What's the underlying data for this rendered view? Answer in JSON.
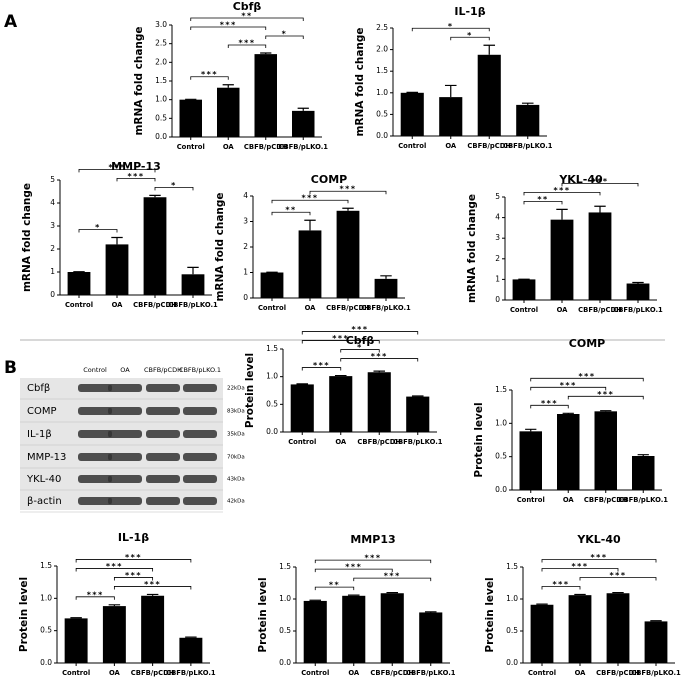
{
  "panels": [
    "A",
    "B"
  ],
  "blot": {
    "lanes": [
      "Control",
      "OA",
      "CBFB/pCDH",
      "CBFB/pLKO.1"
    ],
    "proteins": [
      "Cbfβ",
      "COMP",
      "IL-1β",
      "MMP-13",
      "YKL-40",
      "β-actin"
    ],
    "sizes": [
      "22kDa",
      "83kDa",
      "35kDa",
      "70kDa",
      "43kDa",
      "42kDa"
    ]
  },
  "chart_data": [
    {
      "type": "bar",
      "title": "Cbfβ",
      "ylabel": "mRNA fold change",
      "categories": [
        "Control",
        "OA",
        "CBFB/pCDH",
        "CBFB/pLKO.1"
      ],
      "values": [
        1.0,
        1.32,
        2.22,
        0.7
      ],
      "errors": [
        0.01,
        0.08,
        0.03,
        0.07
      ],
      "ylim": [
        0,
        3
      ],
      "yticks": [
        {
          "value": 0,
          "label": "0.0"
        },
        0.5,
        {
          "value": 1,
          "label": "1.0"
        },
        1.5,
        {
          "value": 2,
          "label": "2.0"
        },
        2.5,
        {
          "value": 3,
          "label": "3.0"
        }
      ],
      "color": "#000000",
      "annotations": [
        {
          "from": 0,
          "to": 1,
          "label": "***"
        },
        {
          "from": 1,
          "to": 2,
          "label": "***"
        },
        {
          "from": 2,
          "to": 3,
          "label": "*"
        },
        {
          "from": 0,
          "to": 2,
          "label": "***"
        },
        {
          "from": 0,
          "to": 3,
          "label": "**"
        }
      ]
    },
    {
      "type": "bar",
      "title": "IL-1β",
      "ylabel": "mRNA fold change",
      "categories": [
        "Control",
        "OA",
        "CBFB/pCDH",
        "CBFB/pLKO.1"
      ],
      "values": [
        1.0,
        0.9,
        1.88,
        0.72
      ],
      "errors": [
        0.01,
        0.27,
        0.22,
        0.04
      ],
      "ylim": [
        0,
        2.5
      ],
      "yticks": [
        {
          "value": 0,
          "label": "0.0"
        },
        0.5,
        {
          "value": 1,
          "label": "1.0"
        },
        1.5,
        {
          "value": 2,
          "label": "2.0"
        },
        2.5
      ],
      "color": "#000000",
      "annotations": [
        {
          "from": 1,
          "to": 2,
          "label": "*"
        },
        {
          "from": 0,
          "to": 2,
          "label": "*"
        }
      ]
    },
    {
      "type": "bar",
      "title": "MMP-13",
      "ylabel": "mRNA fold change",
      "categories": [
        "Control",
        "OA",
        "CBFB/pCDH",
        "CBFB/pLKO.1"
      ],
      "values": [
        1.0,
        2.2,
        4.25,
        0.9
      ],
      "errors": [
        0.01,
        0.3,
        0.08,
        0.3
      ],
      "ylim": [
        0,
        5
      ],
      "yticks": [
        0,
        1,
        2,
        3,
        4,
        5
      ],
      "color": "#000000",
      "annotations": [
        {
          "from": 0,
          "to": 1,
          "label": "*"
        },
        {
          "from": 2,
          "to": 3,
          "label": "*"
        },
        {
          "from": 1,
          "to": 2,
          "label": "***"
        },
        {
          "from": 0,
          "to": 2,
          "label": "***"
        }
      ]
    },
    {
      "type": "bar",
      "title": "COMP",
      "ylabel": "mRNA fold change",
      "categories": [
        "Control",
        "OA",
        "CBFB/pCDH",
        "CBFB/pLKO.1"
      ],
      "values": [
        1.0,
        2.65,
        3.42,
        0.75
      ],
      "errors": [
        0.01,
        0.4,
        0.1,
        0.12
      ],
      "ylim": [
        0,
        4
      ],
      "yticks": [
        0,
        1,
        2,
        3,
        4
      ],
      "color": "#000000",
      "annotations": [
        {
          "from": 0,
          "to": 1,
          "label": "**"
        },
        {
          "from": 0,
          "to": 2,
          "label": "***"
        },
        {
          "from": 1,
          "to": 3,
          "label": "***"
        }
      ]
    },
    {
      "type": "bar",
      "title": "YKL-40",
      "ylabel": "mRNA fold change",
      "categories": [
        "Control",
        "OA",
        "CBFB/pCDH",
        "CBFB/pLKO.1"
      ],
      "values": [
        1.0,
        3.9,
        4.25,
        0.8
      ],
      "errors": [
        0.01,
        0.5,
        0.3,
        0.05
      ],
      "ylim": [
        0,
        5
      ],
      "yticks": [
        0,
        1,
        2,
        3,
        4,
        5
      ],
      "color": "#000000",
      "annotations": [
        {
          "from": 0,
          "to": 1,
          "label": "**"
        },
        {
          "from": 0,
          "to": 2,
          "label": "***"
        },
        {
          "from": 1,
          "to": 3,
          "label": "***"
        }
      ]
    },
    {
      "type": "bar",
      "title": "Cbfβ",
      "ylabel": "Protein level",
      "categories": [
        "Control",
        "OA",
        "CBFB/pCDH",
        "CBFB/pLKO.1"
      ],
      "values": [
        0.86,
        1.01,
        1.08,
        0.64
      ],
      "errors": [
        0.01,
        0.01,
        0.02,
        0.01
      ],
      "ylim": [
        0,
        1.5
      ],
      "yticks": [
        {
          "value": 0,
          "label": "0.0"
        },
        0.5,
        {
          "value": 1,
          "label": "1.0"
        },
        1.5
      ],
      "color": "#000000",
      "annotations": [
        {
          "from": 0,
          "to": 1,
          "label": "***"
        },
        {
          "from": 1,
          "to": 3,
          "label": "***"
        },
        {
          "from": 1,
          "to": 2,
          "label": "*"
        },
        {
          "from": 0,
          "to": 2,
          "label": "***"
        },
        {
          "from": 0,
          "to": 3,
          "label": "***"
        }
      ]
    },
    {
      "type": "bar",
      "title": "COMP",
      "ylabel": "Protein level",
      "categories": [
        "Control",
        "OA",
        "CBFB/pCDH",
        "CBFB/pLKO.1"
      ],
      "values": [
        0.88,
        1.14,
        1.18,
        0.51
      ],
      "errors": [
        0.03,
        0.01,
        0.01,
        0.02
      ],
      "ylim": [
        0,
        1.5
      ],
      "yticks": [
        {
          "value": 0,
          "label": "0.0"
        },
        0.5,
        {
          "value": 1,
          "label": "1.0"
        },
        1.5
      ],
      "color": "#000000",
      "annotations": [
        {
          "from": 0,
          "to": 1,
          "label": "***"
        },
        {
          "from": 1,
          "to": 3,
          "label": "***"
        },
        {
          "from": 0,
          "to": 2,
          "label": "***"
        },
        {
          "from": 0,
          "to": 3,
          "label": "***"
        }
      ]
    },
    {
      "type": "bar",
      "title": "IL-1β",
      "ylabel": "Protein level",
      "categories": [
        "Control",
        "OA",
        "CBFB/pCDH",
        "CBFB/pLKO.1"
      ],
      "values": [
        0.69,
        0.88,
        1.04,
        0.39
      ],
      "errors": [
        0.01,
        0.02,
        0.02,
        0.01
      ],
      "ylim": [
        0,
        1.5
      ],
      "yticks": [
        {
          "value": 0,
          "label": "0.0"
        },
        0.5,
        {
          "value": 1,
          "label": "1.0"
        },
        1.5
      ],
      "color": "#000000",
      "annotations": [
        {
          "from": 0,
          "to": 1,
          "label": "***"
        },
        {
          "from": 1,
          "to": 3,
          "label": "***"
        },
        {
          "from": 1,
          "to": 2,
          "label": "***"
        },
        {
          "from": 0,
          "to": 2,
          "label": "***"
        },
        {
          "from": 0,
          "to": 3,
          "label": "***"
        }
      ]
    },
    {
      "type": "bar",
      "title": "MMP13",
      "ylabel": "Protein level",
      "categories": [
        "Control",
        "OA",
        "CBFB/pCDH",
        "CBFB/pLKO.1"
      ],
      "values": [
        0.97,
        1.05,
        1.09,
        0.79
      ],
      "errors": [
        0.01,
        0.01,
        0.01,
        0.01
      ],
      "ylim": [
        0,
        1.5
      ],
      "yticks": [
        {
          "value": 0,
          "label": "0.0"
        },
        0.5,
        {
          "value": 1,
          "label": "1.0"
        },
        1.5
      ],
      "color": "#000000",
      "annotations": [
        {
          "from": 0,
          "to": 1,
          "label": "**"
        },
        {
          "from": 1,
          "to": 3,
          "label": "***"
        },
        {
          "from": 0,
          "to": 2,
          "label": "***"
        },
        {
          "from": 0,
          "to": 3,
          "label": "***"
        }
      ]
    },
    {
      "type": "bar",
      "title": "YKL-40",
      "ylabel": "Protein level",
      "categories": [
        "Control",
        "OA",
        "CBFB/pCDH",
        "CBFB/pLKO.1"
      ],
      "values": [
        0.91,
        1.06,
        1.09,
        0.65
      ],
      "errors": [
        0.01,
        0.01,
        0.01,
        0.01
      ],
      "ylim": [
        0,
        1.5
      ],
      "yticks": [
        {
          "value": 0,
          "label": "0.0"
        },
        0.5,
        {
          "value": 1,
          "label": "1.0"
        },
        1.5
      ],
      "color": "#000000",
      "annotations": [
        {
          "from": 0,
          "to": 1,
          "label": "***"
        },
        {
          "from": 1,
          "to": 3,
          "label": "***"
        },
        {
          "from": 0,
          "to": 2,
          "label": "***"
        },
        {
          "from": 0,
          "to": 3,
          "label": "***"
        }
      ]
    }
  ]
}
